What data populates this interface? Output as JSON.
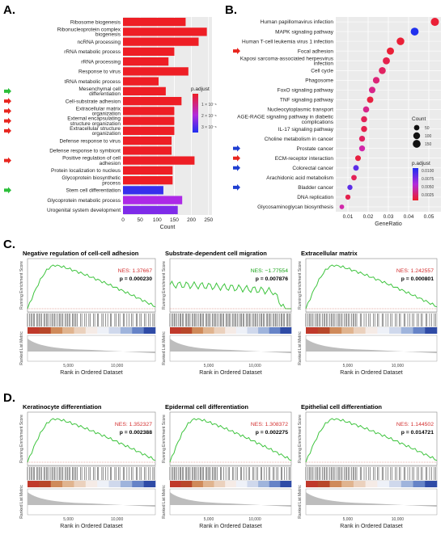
{
  "panels": {
    "a": "A.",
    "b": "B.",
    "c": "C.",
    "d": "D."
  },
  "chart_data": [
    {
      "id": "A",
      "type": "bar",
      "orientation": "horizontal",
      "categories": [
        "Ribosome biogenesis",
        "Ribonucleoprotein complex biogenesis",
        "ncRNA processing",
        "rRNA metabolic process",
        "rRNA processing",
        "Response to virus",
        "tRNA metabolic process",
        "Mesenchymal cell differentiation",
        "Cell-substrate adhesion",
        "Extracellular matrix organization",
        "External encapsulating structure organization",
        "Extracellular structure organization",
        "Defense response to virus",
        "Defense response to symbiont",
        "Positive regulation of cell adhesion",
        "Protein localization to nucleus",
        "Glycoprotein biosynthetic process",
        "Stem cell differentiation",
        "Glycoprotein metabolic process",
        "Urogenital system development"
      ],
      "values": [
        183,
        245,
        221,
        150,
        133,
        191,
        104,
        125,
        171,
        150,
        150,
        150,
        142,
        142,
        209,
        145,
        145,
        118,
        173,
        160
      ],
      "padjust": [
        1e-20,
        1e-20,
        1e-20,
        1e-20,
        1e-20,
        1e-20,
        1e-20,
        1e-20,
        1e-20,
        1e-20,
        1e-20,
        1e-20,
        1e-20,
        1e-20,
        1e-20,
        1e-20,
        1e-20,
        3e-06,
        2.5e-06,
        2.7e-06
      ],
      "arrows": [
        "",
        "",
        "",
        "",
        "",
        "",
        "",
        "green",
        "red",
        "red",
        "red",
        "red",
        "",
        "",
        "red",
        "",
        "",
        "green",
        "",
        ""
      ],
      "xlabel": "Count",
      "xlim": [
        0,
        260
      ],
      "xticks": [
        0,
        50,
        100,
        150,
        200,
        250
      ],
      "legend": {
        "title": "p.adjust",
        "labels": [
          "1 × 10⁻⁶",
          "2 × 10⁻⁶",
          "3 × 10⁻⁶"
        ]
      }
    },
    {
      "id": "B",
      "type": "scatter",
      "categories": [
        "Human papillomavirus infection",
        "MAPK signaling pathway",
        "Human T-cell leukemia virus 1 infection",
        "Focal adhesion",
        "Kaposi sarcoma-associated herpesvirus infection",
        "Cell cycle",
        "Phagosome",
        "FoxO signaling pathway",
        "TNF signaling pathway",
        "Nucleocytoplasmic transport",
        "AGE-RAGE signaling pathway in diabetic complications",
        "IL-17 signaling pathway",
        "Choline metabolism in cancer",
        "Prostate cancer",
        "ECM-receptor interaction",
        "Colorectal cancer",
        "Arachidonic acid metabolism",
        "Bladder cancer",
        "DNA replication",
        "Glycosaminoglycan biosynthesis"
      ],
      "x": [
        0.053,
        0.043,
        0.036,
        0.031,
        0.029,
        0.027,
        0.024,
        0.022,
        0.021,
        0.019,
        0.018,
        0.018,
        0.017,
        0.017,
        0.015,
        0.014,
        0.013,
        0.011,
        0.01,
        0.007
      ],
      "size": [
        170,
        155,
        140,
        120,
        115,
        108,
        95,
        87,
        84,
        74,
        72,
        70,
        66,
        66,
        58,
        55,
        50,
        42,
        40,
        28
      ],
      "padjust": [
        0.0005,
        0.011,
        0.0005,
        0.0005,
        0.0012,
        0.0018,
        0.0025,
        0.003,
        0.0008,
        0.003,
        0.0015,
        0.0012,
        0.0018,
        0.004,
        0.0008,
        0.009,
        0.0015,
        0.009,
        0.0012,
        0.004
      ],
      "arrows": [
        "",
        "",
        "",
        "red",
        "",
        "",
        "",
        "",
        "",
        "",
        "",
        "",
        "",
        "blue",
        "red",
        "blue",
        "",
        "blue",
        "",
        ""
      ],
      "xlabel": "GeneRatio",
      "xlim": [
        0.004,
        0.056
      ],
      "xticks": [
        0.01,
        0.02,
        0.03,
        0.04,
        0.05
      ],
      "size_legend": {
        "title": "Count",
        "labels": [
          "50",
          "100",
          "150"
        ]
      },
      "color_legend": {
        "title": "p.adjust",
        "labels": [
          "0.0100",
          "0.0075",
          "0.0050",
          "0.0025"
        ]
      }
    },
    {
      "id": "C",
      "type": "line",
      "gsea": [
        {
          "title": "Negative regulation of cell-cell adhesion",
          "nes": "NES: 1.37667",
          "p": "p = 0.000230",
          "trend": "up"
        },
        {
          "title": "Substrate-dependent cell migration",
          "nes": "NES: −1.77554",
          "p": "p = 0.007876",
          "trend": "down"
        },
        {
          "title": "Extracellular matrix",
          "nes": "NES: 1.242557",
          "p": "p = 0.000801",
          "trend": "up"
        }
      ],
      "ylabel_top": "Running Enrichment Score",
      "ylabel_bottom": "Ranked List Metric",
      "xlabel": "Rank in Ordered Dataset",
      "xticks": [
        "5,000",
        "10,000"
      ]
    },
    {
      "id": "D",
      "type": "line",
      "gsea": [
        {
          "title": "Keratinocyte differentiation",
          "nes": "NES: 1.352327",
          "p": "p = 0.002388",
          "trend": "up"
        },
        {
          "title": "Epidermal cell differentiation",
          "nes": "NES: 1.308372",
          "p": "p = 0.002275",
          "trend": "up"
        },
        {
          "title": "Epithelial cell differentiation",
          "nes": "NES: 1.144502",
          "p": "p = 0.014721",
          "trend": "up"
        }
      ],
      "ylabel_top": "Running Enrichment Score",
      "ylabel_bottom": "Ranked List Metric",
      "xlabel": "Rank in Ordered Dataset",
      "xticks": [
        "5,000",
        "10,000"
      ]
    }
  ]
}
